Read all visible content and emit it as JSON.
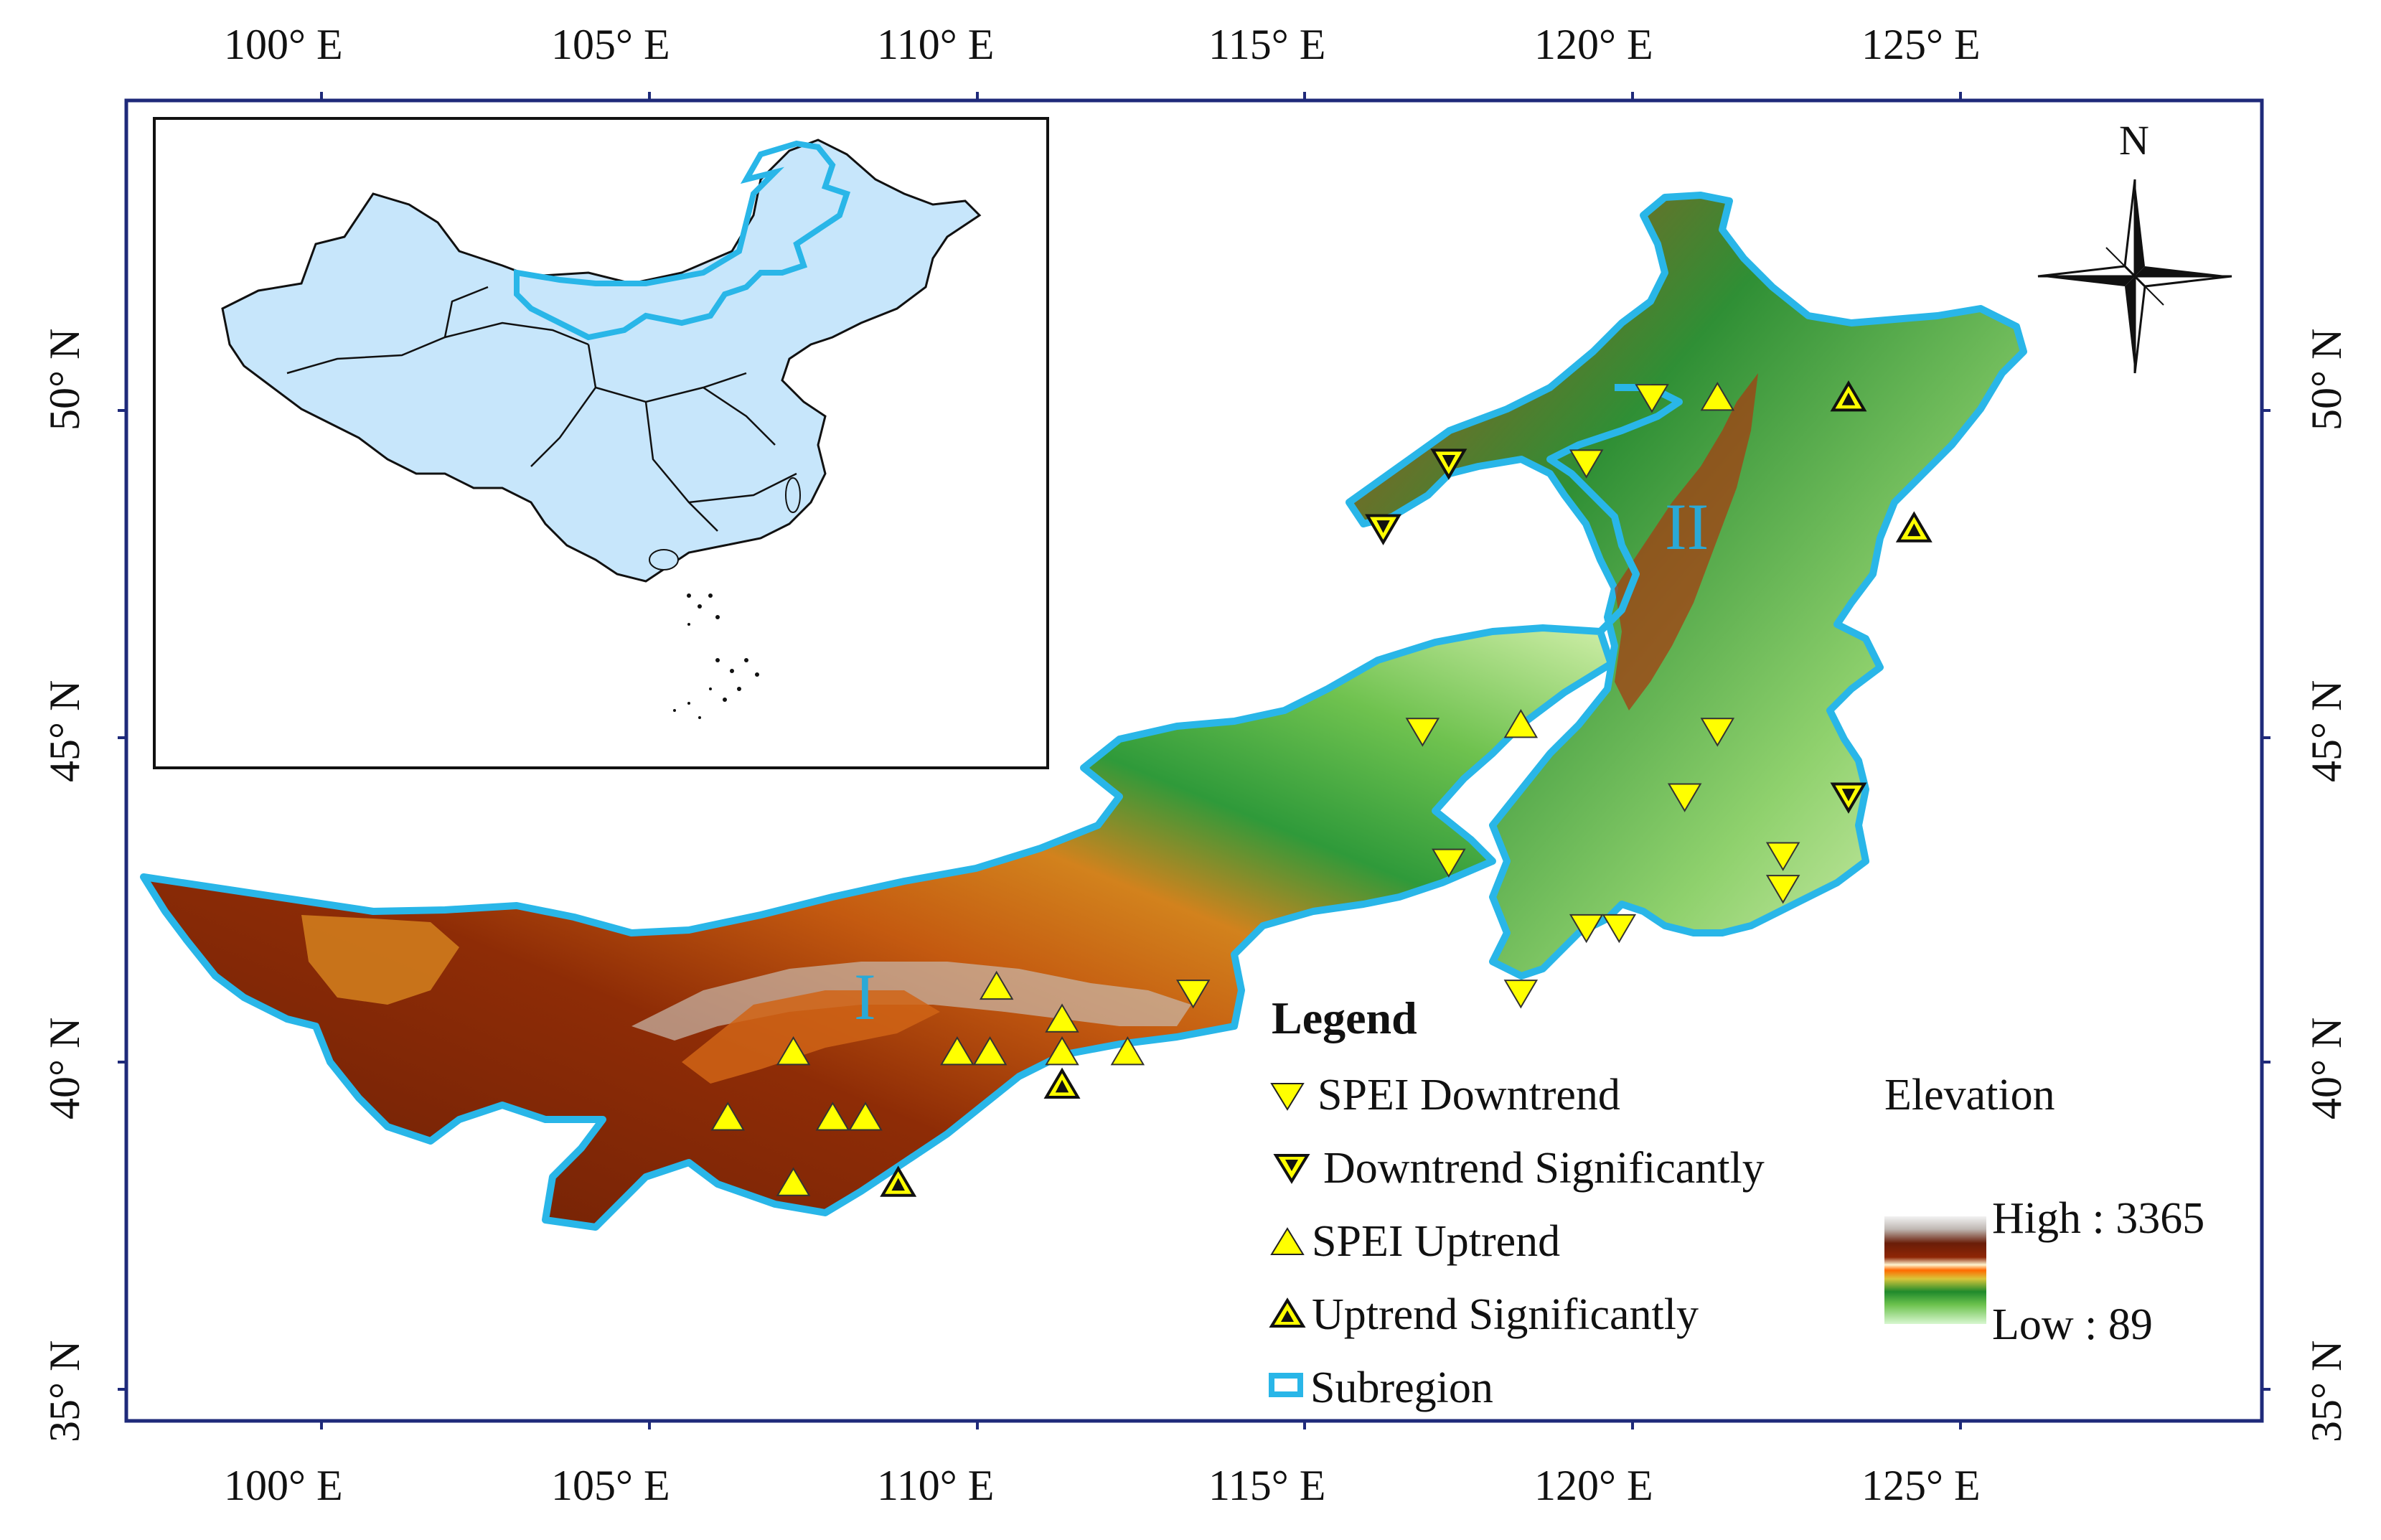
{
  "map": {
    "top_ticks": [
      "100° E",
      "105° E",
      "110° E",
      "115° E",
      "120° E",
      "125° E"
    ],
    "bottom_ticks": [
      "100° E",
      "105° E",
      "110° E",
      "115° E",
      "120° E",
      "125° E"
    ],
    "left_ticks": [
      "50° N",
      "45° N",
      "40° N",
      "35° N"
    ],
    "right_ticks": [
      "50° N",
      "45° N",
      "40° N",
      "35° N"
    ],
    "regions": [
      "I",
      "II"
    ],
    "north_label": "N"
  },
  "legend": {
    "title": "Legend",
    "items": [
      {
        "label": "SPEI Downtrend",
        "symbol": "down"
      },
      {
        "label": "Downtrend Significantly",
        "symbol": "down-sig"
      },
      {
        "label": "SPEI Uptrend",
        "symbol": "up"
      },
      {
        "label": "Uptrend Significantly",
        "symbol": "up-sig"
      },
      {
        "label": "Subregion",
        "symbol": "subregion"
      }
    ]
  },
  "elevation": {
    "title": "Elevation",
    "high_label": "High : 3365",
    "low_label": "Low : 89",
    "high": 3365,
    "low": 89
  },
  "stations": [
    {
      "lon": 106.2,
      "lat": 39.2,
      "trend": "up"
    },
    {
      "lon": 107.2,
      "lat": 40.2,
      "trend": "up"
    },
    {
      "lon": 107.2,
      "lat": 38.2,
      "trend": "up"
    },
    {
      "lon": 107.8,
      "lat": 39.2,
      "trend": "up"
    },
    {
      "lon": 108.3,
      "lat": 39.2,
      "trend": "up"
    },
    {
      "lon": 108.8,
      "lat": 38.2,
      "trend": "up-sig"
    },
    {
      "lon": 109.7,
      "lat": 40.2,
      "trend": "up"
    },
    {
      "lon": 110.2,
      "lat": 40.2,
      "trend": "up"
    },
    {
      "lon": 110.3,
      "lat": 41.2,
      "trend": "up"
    },
    {
      "lon": 111.3,
      "lat": 40.7,
      "trend": "up"
    },
    {
      "lon": 111.3,
      "lat": 40.2,
      "trend": "up"
    },
    {
      "lon": 111.3,
      "lat": 39.7,
      "trend": "up-sig"
    },
    {
      "lon": 112.3,
      "lat": 40.2,
      "trend": "up"
    },
    {
      "lon": 113.3,
      "lat": 41.1,
      "trend": "down"
    },
    {
      "lon": 116.2,
      "lat": 48.2,
      "trend": "down-sig"
    },
    {
      "lon": 116.8,
      "lat": 45.1,
      "trend": "down"
    },
    {
      "lon": 117.2,
      "lat": 49.2,
      "trend": "down-sig"
    },
    {
      "lon": 117.2,
      "lat": 43.1,
      "trend": "down"
    },
    {
      "lon": 118.3,
      "lat": 45.2,
      "trend": "up"
    },
    {
      "lon": 118.3,
      "lat": 41.1,
      "trend": "down"
    },
    {
      "lon": 119.3,
      "lat": 49.2,
      "trend": "down"
    },
    {
      "lon": 119.3,
      "lat": 42.1,
      "trend": "down"
    },
    {
      "lon": 119.8,
      "lat": 42.1,
      "trend": "down"
    },
    {
      "lon": 120.3,
      "lat": 50.2,
      "trend": "down"
    },
    {
      "lon": 120.8,
      "lat": 44.1,
      "trend": "down"
    },
    {
      "lon": 121.3,
      "lat": 50.2,
      "trend": "up"
    },
    {
      "lon": 121.3,
      "lat": 45.1,
      "trend": "down"
    },
    {
      "lon": 122.3,
      "lat": 43.2,
      "trend": "down"
    },
    {
      "lon": 122.3,
      "lat": 42.7,
      "trend": "down"
    },
    {
      "lon": 123.3,
      "lat": 50.2,
      "trend": "up-sig"
    },
    {
      "lon": 123.3,
      "lat": 44.1,
      "trend": "down-sig"
    },
    {
      "lon": 124.3,
      "lat": 48.2,
      "trend": "up-sig"
    }
  ]
}
